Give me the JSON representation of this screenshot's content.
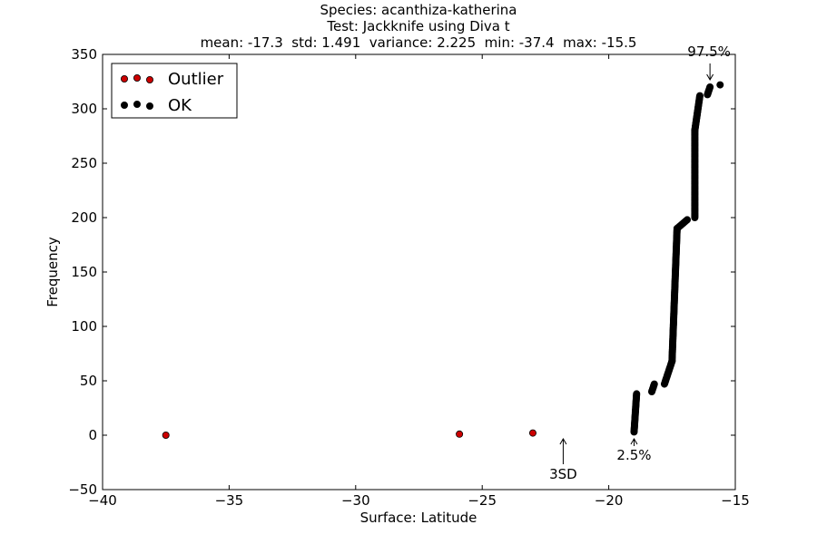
{
  "chart_data": {
    "type": "scatter",
    "title_lines": [
      "Species: acanthiza-katherina",
      "Test: Jackknife using Diva t",
      "mean: -17.3  std: 1.491  variance: 2.225  min: -37.4  max: -15.5"
    ],
    "xlabel": "Surface: Latitude",
    "ylabel": "Frequency",
    "xlim": [
      -40,
      -15
    ],
    "ylim": [
      -50,
      350
    ],
    "xticks": [
      -40,
      -35,
      -30,
      -25,
      -20,
      -15
    ],
    "xtick_labels": [
      "−40",
      "−35",
      "−30",
      "−25",
      "−20",
      "−15"
    ],
    "yticks": [
      -50,
      0,
      50,
      100,
      150,
      200,
      250,
      300,
      350
    ],
    "ytick_labels": [
      "−50",
      "0",
      "50",
      "100",
      "150",
      "200",
      "250",
      "300",
      "350"
    ],
    "grid": false,
    "legend_position": "top-left",
    "series": [
      {
        "name": "Outlier",
        "color": "#cc0000",
        "points": [
          [
            -37.5,
            0
          ],
          [
            -25.9,
            1
          ],
          [
            -23.0,
            2
          ]
        ]
      },
      {
        "name": "OK",
        "color": "#000000",
        "segments": [
          {
            "x0": -19.0,
            "x1": -18.9,
            "y0": 3,
            "y1": 38
          },
          {
            "x0": -18.3,
            "x1": -18.2,
            "y0": 40,
            "y1": 47
          },
          {
            "x0": -17.8,
            "x1": -17.5,
            "y0": 47,
            "y1": 68
          },
          {
            "x0": -17.5,
            "x1": -17.3,
            "y0": 68,
            "y1": 190
          },
          {
            "x0": -17.3,
            "x1": -16.9,
            "y0": 190,
            "y1": 198
          },
          {
            "x0": -16.6,
            "x1": -16.6,
            "y0": 200,
            "y1": 280
          },
          {
            "x0": -16.6,
            "x1": -16.4,
            "y0": 280,
            "y1": 312
          },
          {
            "x0": -16.1,
            "x1": -16.0,
            "y0": 313,
            "y1": 320
          }
        ],
        "points": [
          [
            -15.6,
            322
          ]
        ]
      }
    ],
    "annotations": [
      {
        "text": "97.5%",
        "x": -16.0,
        "y": 320
      },
      {
        "text": "2.5%",
        "x": -19.0,
        "y": 0
      },
      {
        "text": "3SD",
        "x": -21.8,
        "y": 0
      }
    ]
  }
}
